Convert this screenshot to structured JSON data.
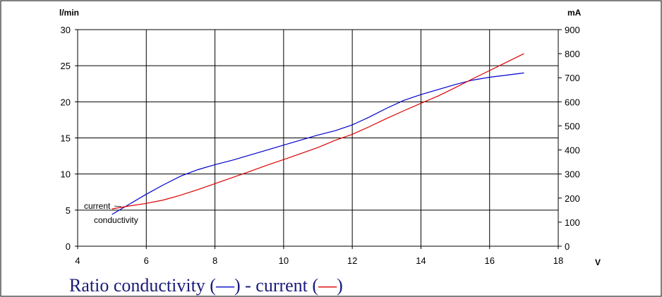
{
  "chart_data": {
    "type": "line",
    "title": "Ratio conductivity (—) - current (—)",
    "title_parts": {
      "prefix": "Ratio conductivity (",
      "mark1": "—",
      "middle": ") - current (",
      "mark2": "—",
      "suffix": ")"
    },
    "xlabel": "V",
    "ylabel_left": "l/min",
    "ylabel_right": "mA",
    "xlim": [
      4,
      18
    ],
    "ylim_left": [
      0,
      30
    ],
    "ylim_right": [
      0,
      900
    ],
    "x_ticks": [
      "4",
      "6",
      "8",
      "10",
      "12",
      "14",
      "16",
      "18"
    ],
    "y_left_ticks": [
      "0",
      "5",
      "10",
      "15",
      "20",
      "25",
      "30"
    ],
    "y_right_ticks": [
      "0",
      "100",
      "200",
      "300",
      "400",
      "500",
      "600",
      "700",
      "800",
      "900"
    ],
    "grid": true,
    "series": [
      {
        "name": "conductivity",
        "axis": "left",
        "color": "#0000cc",
        "x": [
          5,
          5.5,
          6,
          6.5,
          7,
          7.5,
          8,
          8.5,
          9,
          9.5,
          10,
          10.5,
          11,
          11.5,
          12,
          12.5,
          13,
          13.5,
          14,
          14.5,
          15,
          15.5,
          16,
          16.5,
          17
        ],
        "values": [
          4.4,
          5.8,
          7.2,
          8.5,
          9.7,
          10.6,
          11.3,
          11.9,
          12.6,
          13.3,
          14.0,
          14.7,
          15.4,
          16.0,
          16.8,
          17.9,
          19.1,
          20.2,
          21.0,
          21.7,
          22.4,
          23.0,
          23.4,
          23.7,
          24.0
        ]
      },
      {
        "name": "current",
        "axis": "right",
        "color": "#dd0000",
        "x": [
          5,
          5.5,
          6,
          6.5,
          7,
          7.5,
          8,
          8.5,
          9,
          9.5,
          10,
          10.5,
          11,
          11.5,
          12,
          12.5,
          13,
          13.5,
          14,
          14.5,
          15,
          15.5,
          16,
          16.5,
          17
        ],
        "values": [
          155,
          167,
          178,
          192,
          212,
          235,
          260,
          285,
          310,
          336,
          360,
          385,
          410,
          440,
          465,
          497,
          531,
          563,
          594,
          624,
          659,
          695,
          730,
          765,
          800
        ]
      }
    ],
    "annotations": [
      "current",
      "conductivity"
    ]
  }
}
